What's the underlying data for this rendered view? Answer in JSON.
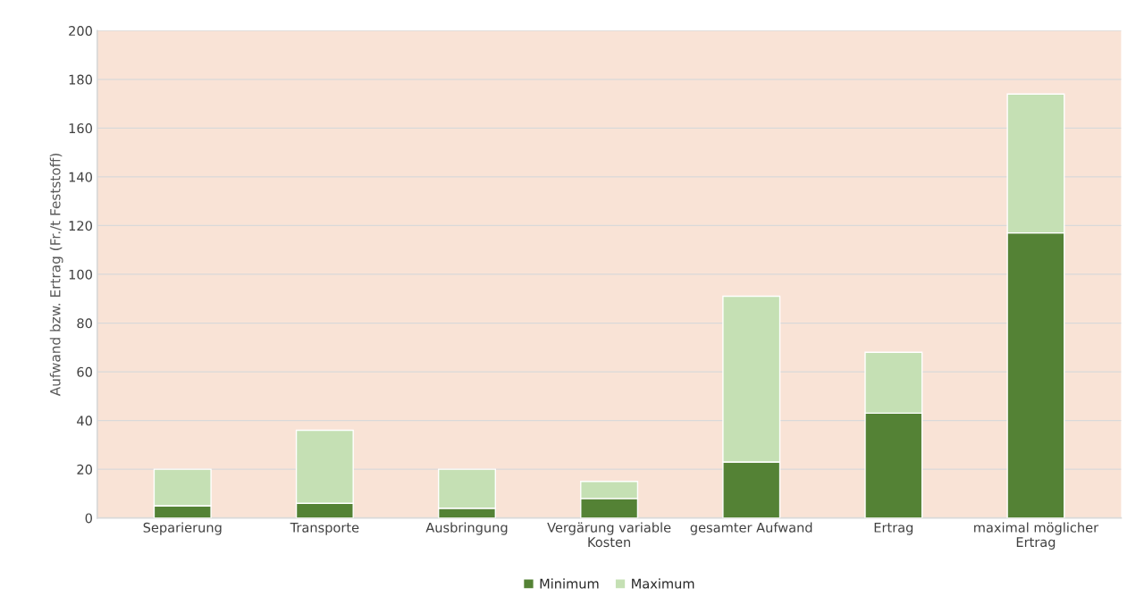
{
  "chart_data": {
    "type": "bar",
    "ylabel": "Aufwand bzw. Ertrag (Fr./t Feststoff)",
    "categories": [
      "Separierung",
      "Transporte",
      "Ausbringung",
      "Vergärung variable\nKosten",
      "gesamter Aufwand",
      "Ertrag",
      "maximal möglicher\nErtrag"
    ],
    "series": [
      {
        "name": "Minimum",
        "color": "#548235",
        "values": [
          5,
          6,
          4,
          8,
          23,
          43,
          117
        ]
      },
      {
        "name": "Maximum",
        "color": "#c5e0b4",
        "values": [
          15,
          30,
          16,
          7,
          68,
          25,
          57
        ]
      }
    ],
    "stacked": true,
    "ylim": [
      0,
      200
    ],
    "yticks": [
      0,
      20,
      40,
      60,
      80,
      100,
      120,
      140,
      160,
      180,
      200
    ],
    "grid": "y",
    "legend": "bottom"
  }
}
